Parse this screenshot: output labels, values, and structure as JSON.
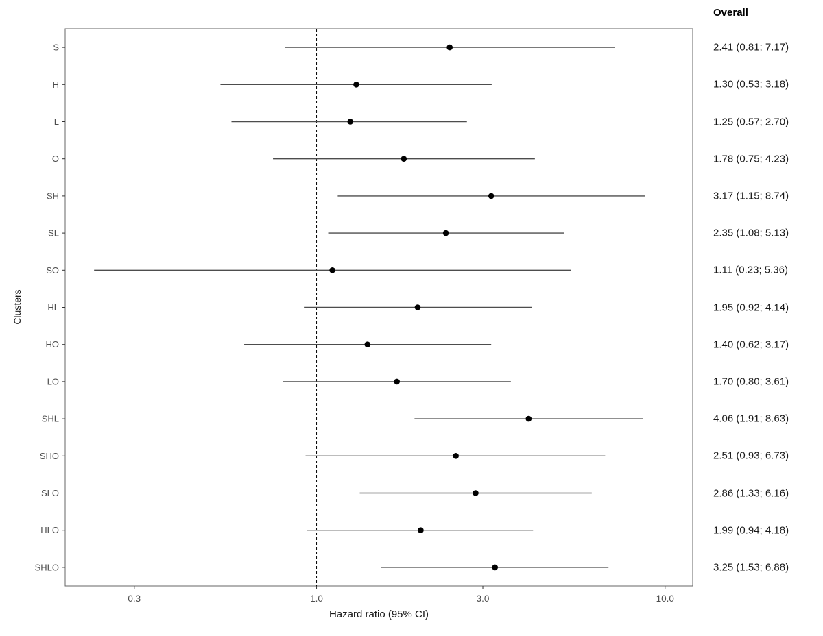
{
  "chart_data": {
    "type": "scatter",
    "subtype": "forest-plot",
    "xlabel": "Hazard ratio (95% CI)",
    "ylabel": "Clusters",
    "column_header": "Overall",
    "x_scale": "log",
    "x_range": [
      0.19,
      12
    ],
    "x_ticks": [
      0.3,
      1.0,
      3.0,
      10.0
    ],
    "x_tick_labels": [
      "0.3",
      "1.0",
      "3.0",
      "10.0"
    ],
    "reference_line": 1.0,
    "grid": false,
    "legend": "none",
    "categories": [
      "S",
      "H",
      "L",
      "O",
      "SH",
      "SL",
      "SO",
      "HL",
      "HO",
      "LO",
      "SHL",
      "SHO",
      "SLO",
      "HLO",
      "SHLO"
    ],
    "estimates": [
      2.41,
      1.3,
      1.25,
      1.78,
      3.17,
      2.35,
      1.11,
      1.95,
      1.4,
      1.7,
      4.06,
      2.51,
      2.86,
      1.99,
      3.25
    ],
    "ci_lower": [
      0.81,
      0.53,
      0.57,
      0.75,
      1.15,
      1.08,
      0.23,
      0.92,
      0.62,
      0.8,
      1.91,
      0.93,
      1.33,
      0.94,
      1.53
    ],
    "ci_upper": [
      7.17,
      3.18,
      2.7,
      4.23,
      8.74,
      5.13,
      5.36,
      4.14,
      3.17,
      3.61,
      8.63,
      6.73,
      6.16,
      4.18,
      6.88
    ],
    "overall_labels": [
      "2.41 (0.81; 7.17)",
      "1.30 (0.53; 3.18)",
      "1.25 (0.57; 2.70)",
      "1.78 (0.75; 4.23)",
      "3.17 (1.15; 8.74)",
      "2.35 (1.08; 5.13)",
      "1.11 (0.23; 5.36)",
      "1.95 (0.92; 4.14)",
      "1.40 (0.62; 3.17)",
      "1.70 (0.80; 3.61)",
      "4.06 (1.91; 8.63)",
      "2.51 (0.93; 6.73)",
      "2.86 (1.33; 6.16)",
      "1.99 (0.94; 4.18)",
      "3.25 (1.53; 6.88)"
    ]
  },
  "colors": {
    "point": "#000000",
    "ci_line": "#4d4d4d",
    "panel_border": "#666666",
    "axis_tick": "#333333",
    "axis_text": "#4d4d4d",
    "reference_line": "#000000",
    "value_text": "#1a1a1a"
  }
}
